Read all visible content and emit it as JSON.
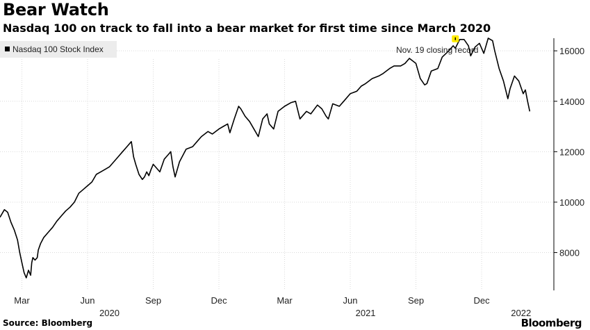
{
  "header": {
    "title": "Bear Watch",
    "subtitle": "Nasdaq 100 on track to fall into a bear market for first time since March 2020"
  },
  "footer": {
    "source": "Source: Bloomberg",
    "brand": "Bloomberg"
  },
  "colors": {
    "line": "#000000",
    "grid": "#d9d9d9",
    "highlight": "#ffeb00",
    "legend_bg": "#ececec"
  },
  "chart_data": {
    "type": "line",
    "title": "Bear Watch",
    "subtitle": "Nasdaq 100 on track to fall into a bear market for first time since March 2020",
    "xlabel": "",
    "ylabel": "",
    "legend": [
      "Nasdaq 100 Stock Index"
    ],
    "legend_position": "top-left",
    "y_axis_position": "right",
    "ylim": [
      6500,
      16500
    ],
    "yticks": [
      8000,
      10000,
      12000,
      14000,
      16000
    ],
    "xlim": [
      0,
      25.3
    ],
    "xticks": [
      {
        "x": 1.0,
        "label": "Mar"
      },
      {
        "x": 4.0,
        "label": "Jun"
      },
      {
        "x": 7.0,
        "label": "Sep"
      },
      {
        "x": 10.0,
        "label": "Dec"
      },
      {
        "x": 13.0,
        "label": "Mar"
      },
      {
        "x": 16.0,
        "label": "Jun"
      },
      {
        "x": 19.0,
        "label": "Sep"
      },
      {
        "x": 22.0,
        "label": "Dec"
      }
    ],
    "year_labels": [
      {
        "x": 5.0,
        "label": "2020"
      },
      {
        "x": 16.7,
        "label": "2021"
      },
      {
        "x": 23.8,
        "label": "2022"
      }
    ],
    "grid": true,
    "series": [
      {
        "name": "Nasdaq 100 Stock Index",
        "x": [
          0.0,
          0.2,
          0.35,
          0.5,
          0.65,
          0.8,
          0.9,
          1.0,
          1.1,
          1.2,
          1.3,
          1.4,
          1.45,
          1.5,
          1.6,
          1.7,
          1.75,
          1.85,
          2.0,
          2.2,
          2.4,
          2.6,
          2.8,
          3.0,
          3.2,
          3.4,
          3.6,
          3.8,
          4.0,
          4.2,
          4.4,
          4.6,
          4.8,
          5.0,
          5.2,
          5.4,
          5.6,
          5.8,
          6.0,
          6.1,
          6.2,
          6.35,
          6.5,
          6.6,
          6.7,
          6.8,
          6.9,
          7.0,
          7.1,
          7.3,
          7.5,
          7.6,
          7.7,
          7.8,
          7.9,
          8.0,
          8.2,
          8.5,
          8.8,
          9.0,
          9.2,
          9.5,
          9.7,
          10.0,
          10.2,
          10.4,
          10.5,
          10.7,
          10.9,
          11.0,
          11.2,
          11.4,
          11.6,
          11.8,
          12.0,
          12.2,
          12.3,
          12.5,
          12.7,
          13.0,
          13.3,
          13.5,
          13.7,
          14.0,
          14.2,
          14.5,
          14.7,
          14.9,
          15.0,
          15.2,
          15.5,
          15.7,
          16.0,
          16.3,
          16.5,
          16.7,
          17.0,
          17.3,
          17.5,
          17.8,
          18.0,
          18.3,
          18.5,
          18.7,
          19.0,
          19.2,
          19.4,
          19.5,
          19.7,
          20.0,
          20.2,
          20.5,
          20.7,
          20.8,
          21.0,
          21.2,
          21.4,
          21.5,
          21.7,
          21.9,
          22.1,
          22.3,
          22.5,
          22.6,
          22.8,
          23.0,
          23.2,
          23.3,
          23.5,
          23.7,
          23.9,
          24.0,
          24.1,
          24.2
        ],
        "values": [
          9400,
          9700,
          9600,
          9200,
          8900,
          8500,
          8000,
          7600,
          7200,
          7000,
          7300,
          7100,
          7600,
          7800,
          7700,
          7800,
          8100,
          8350,
          8600,
          8800,
          9000,
          9250,
          9450,
          9650,
          9800,
          10000,
          10350,
          10500,
          10650,
          10800,
          11100,
          11200,
          11300,
          11400,
          11600,
          11800,
          12000,
          12200,
          12400,
          11800,
          11500,
          11100,
          10900,
          11000,
          11200,
          11050,
          11300,
          11500,
          11400,
          11200,
          11700,
          11800,
          11900,
          12000,
          11400,
          11000,
          11600,
          12100,
          12200,
          12400,
          12600,
          12800,
          12700,
          12900,
          13000,
          13100,
          12750,
          13300,
          13800,
          13700,
          13400,
          13200,
          12900,
          12600,
          13300,
          13500,
          13100,
          12900,
          13600,
          13800,
          13950,
          14000,
          13300,
          13600,
          13500,
          13850,
          13700,
          13400,
          13300,
          13900,
          13800,
          14000,
          14300,
          14400,
          14600,
          14700,
          14900,
          15000,
          15100,
          15300,
          15400,
          15400,
          15500,
          15700,
          15500,
          14900,
          14650,
          14700,
          15200,
          15300,
          15750,
          16000,
          16200,
          16100,
          16450,
          16450,
          16200,
          15800,
          16150,
          16300,
          15900,
          16500,
          16400,
          16000,
          15300,
          14800,
          14100,
          14500,
          15000,
          14800,
          14300,
          14450,
          14000,
          13600
        ]
      }
    ],
    "annotations": [
      {
        "text": "Nov. 19 closing record",
        "x": 20.8,
        "value": 16450
      }
    ]
  }
}
